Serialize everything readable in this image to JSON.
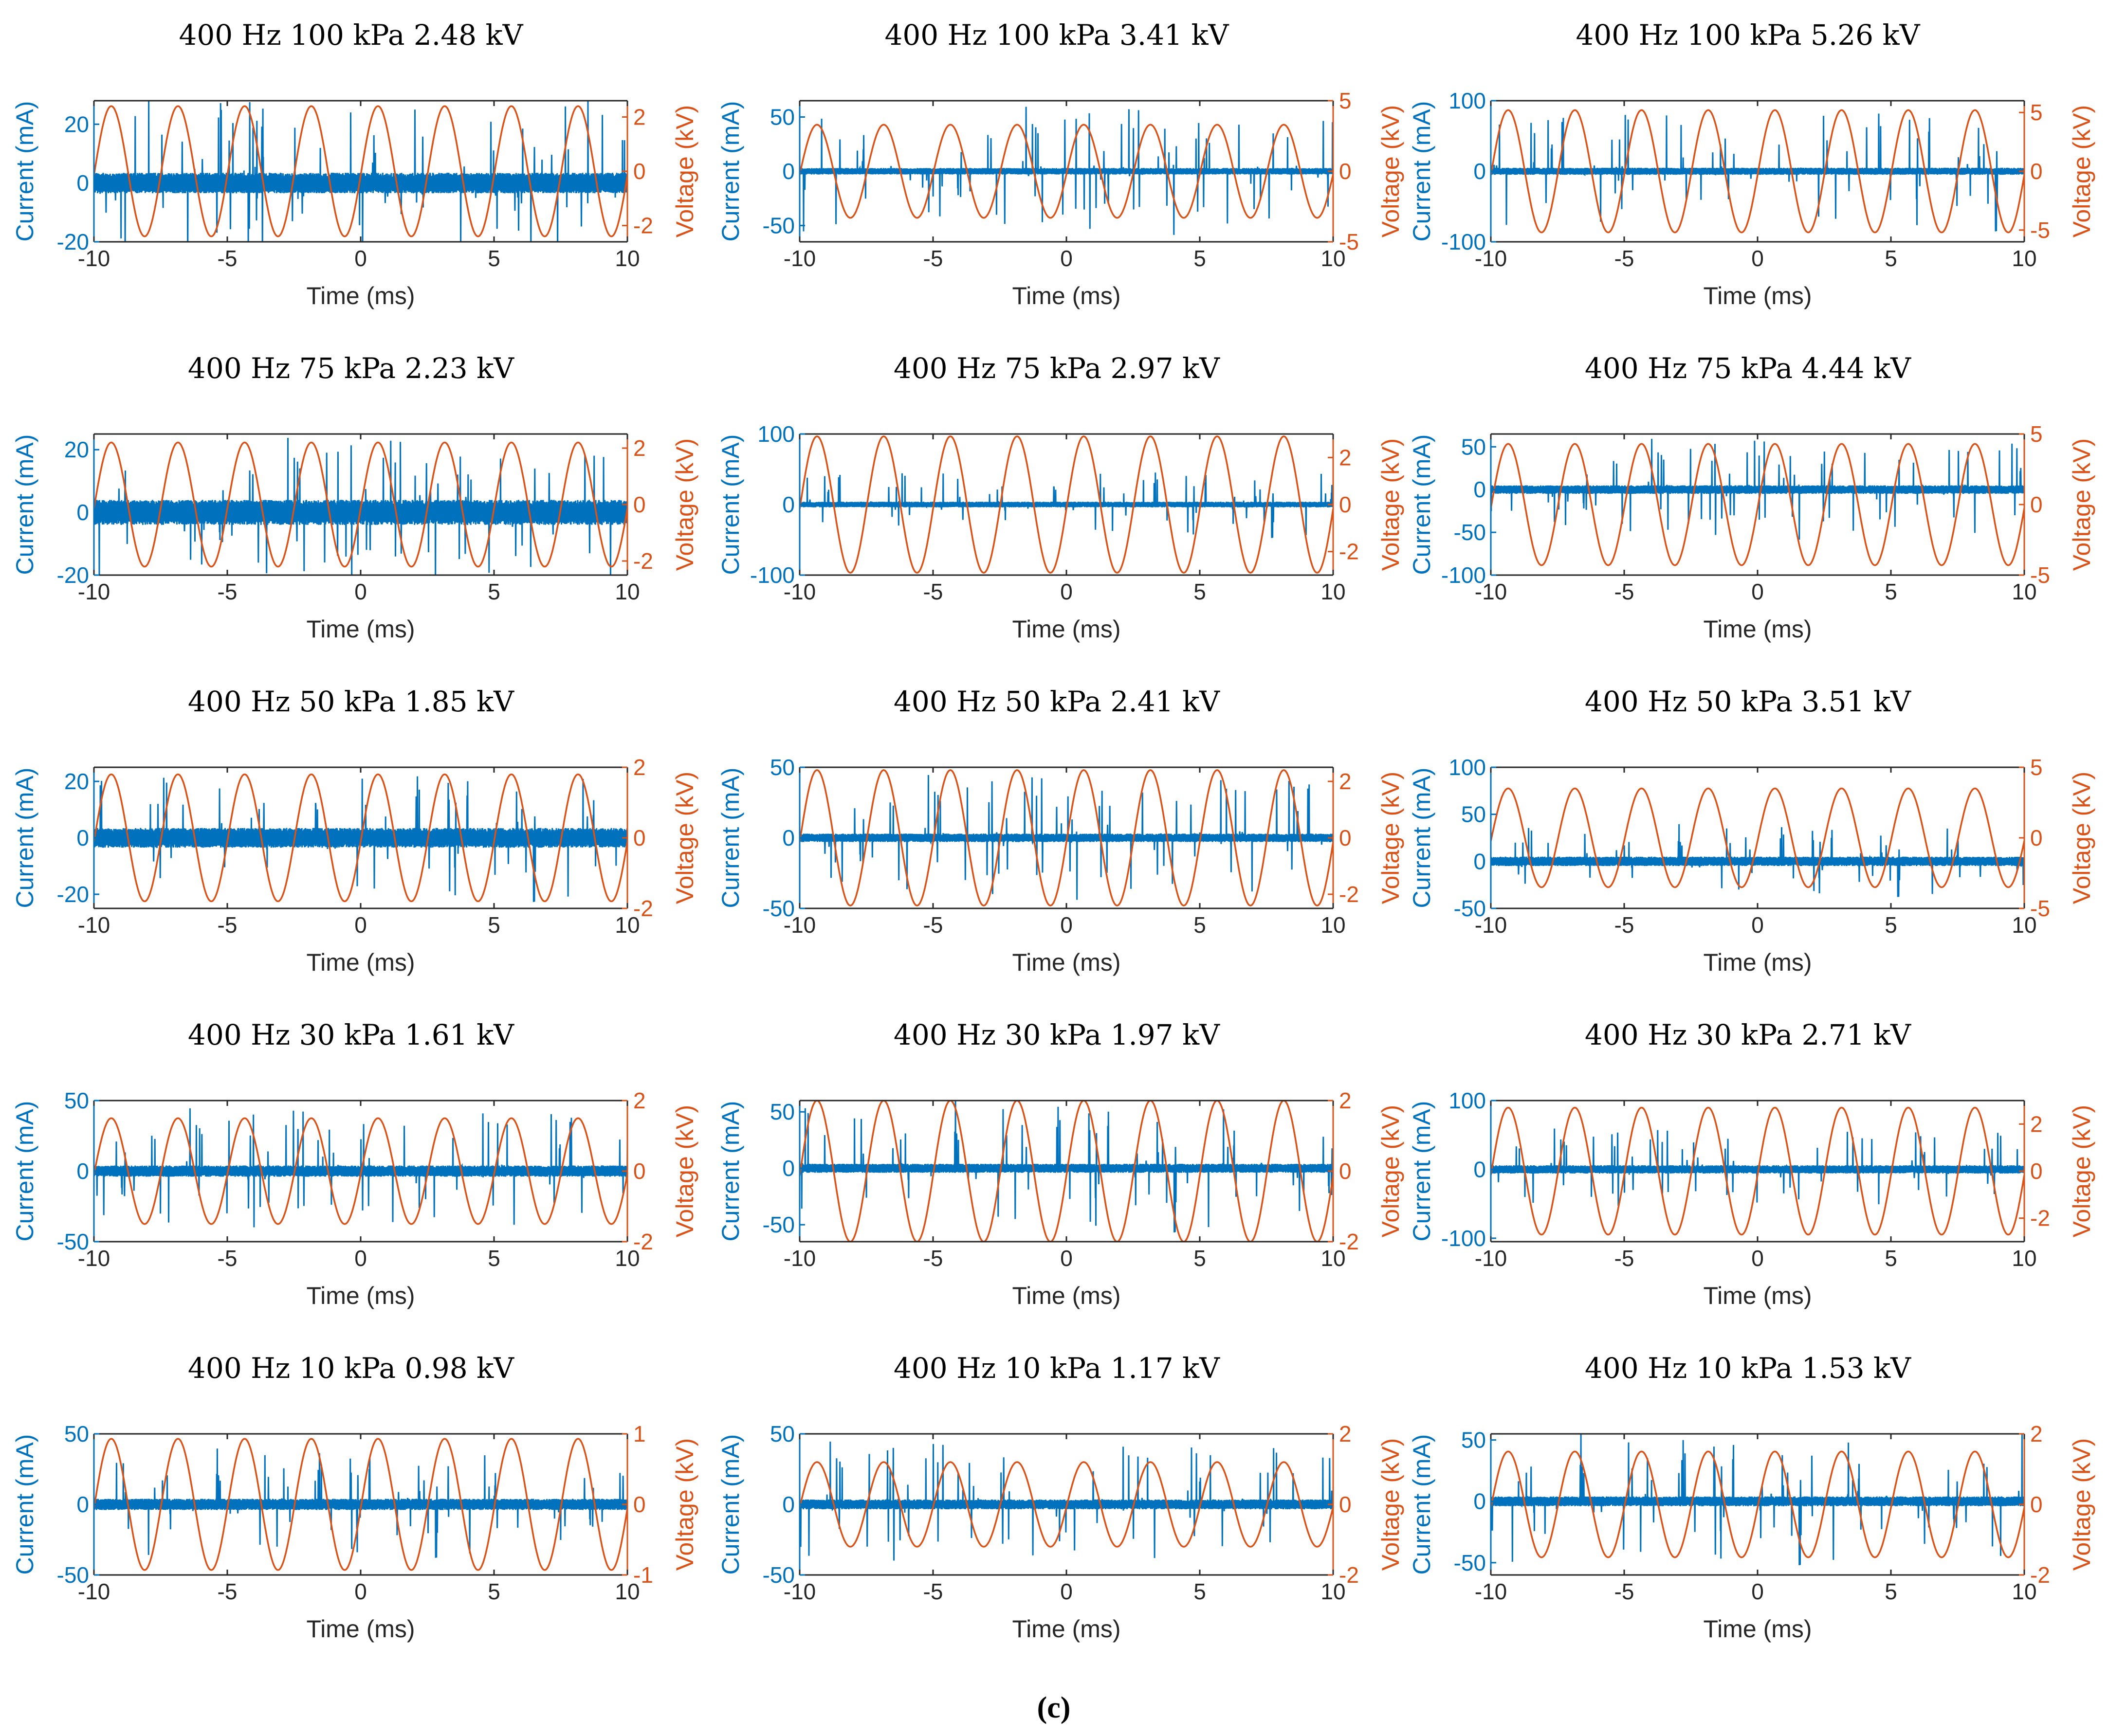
{
  "figure": {
    "caption": "(c)"
  },
  "colors": {
    "current": "#0072BD",
    "voltage": "#D95319",
    "axis": "#262626"
  },
  "chart_data": [
    {
      "type": "line",
      "title": "400 Hz 100 kPa 2.48 kV",
      "xlabel": "Time (ms)",
      "ylabel_left": "Current (mA)",
      "ylabel_right": "Voltage (kV)",
      "xlim": [
        -10,
        10
      ],
      "xticks": [
        -10,
        -5,
        0,
        5,
        10
      ],
      "current_ylim": [
        -20,
        28
      ],
      "current_ticks": [
        -20,
        0,
        20
      ],
      "voltage_ylim": [
        -2.6,
        2.6
      ],
      "voltage_ticks": [
        -2,
        0,
        2
      ],
      "voltage_amplitude_kV": 2.4,
      "frequency_Hz": 400,
      "current_noise_mA": 3.5,
      "current_spike_mA": 28
    },
    {
      "type": "line",
      "title": "400 Hz 100 kPa 3.41 kV",
      "xlabel": "Time (ms)",
      "ylabel_left": "Current (mA)",
      "ylabel_right": "Voltage (kV)",
      "xlim": [
        -10,
        10
      ],
      "xticks": [
        -10,
        -5,
        0,
        5,
        10
      ],
      "current_ylim": [
        -65,
        65
      ],
      "current_ticks": [
        -50,
        0,
        50
      ],
      "voltage_ylim": [
        -5,
        5
      ],
      "voltage_ticks": [
        -5,
        0,
        5
      ],
      "voltage_amplitude_kV": 3.3,
      "frequency_Hz": 400,
      "current_noise_mA": 3,
      "current_spike_mA": 60
    },
    {
      "type": "line",
      "title": "400 Hz 100 kPa 5.26 kV",
      "xlabel": "Time (ms)",
      "ylabel_left": "Current (mA)",
      "ylabel_right": "Voltage (kV)",
      "xlim": [
        -10,
        10
      ],
      "xticks": [
        -10,
        -5,
        0,
        5,
        10
      ],
      "current_ylim": [
        -100,
        100
      ],
      "current_ticks": [
        -100,
        0,
        100
      ],
      "voltage_ylim": [
        -6,
        6
      ],
      "voltage_ticks": [
        -5,
        0,
        5
      ],
      "voltage_amplitude_kV": 5.2,
      "frequency_Hz": 400,
      "current_noise_mA": 5,
      "current_spike_mA": 90
    },
    {
      "type": "line",
      "title": "400 Hz 75 kPa 2.23 kV",
      "xlabel": "Time (ms)",
      "ylabel_left": "Current (mA)",
      "ylabel_right": "Voltage (kV)",
      "xlim": [
        -10,
        10
      ],
      "xticks": [
        -10,
        -5,
        0,
        5,
        10
      ],
      "current_ylim": [
        -20,
        25
      ],
      "current_ticks": [
        -20,
        0,
        20
      ],
      "voltage_ylim": [
        -2.5,
        2.5
      ],
      "voltage_ticks": [
        -2,
        0,
        2
      ],
      "voltage_amplitude_kV": 2.2,
      "frequency_Hz": 400,
      "current_noise_mA": 4,
      "current_spike_mA": 24
    },
    {
      "type": "line",
      "title": "400 Hz 75 kPa 2.97 kV",
      "xlabel": "Time (ms)",
      "ylabel_left": "Current (mA)",
      "ylabel_right": "Voltage (kV)",
      "xlim": [
        -10,
        10
      ],
      "xticks": [
        -10,
        -5,
        0,
        5,
        10
      ],
      "current_ylim": [
        -100,
        100
      ],
      "current_ticks": [
        -100,
        0,
        100
      ],
      "voltage_ylim": [
        -3,
        3
      ],
      "voltage_ticks": [
        -2,
        0,
        2
      ],
      "voltage_amplitude_kV": 2.9,
      "frequency_Hz": 400,
      "current_noise_mA": 4,
      "current_spike_mA": 50
    },
    {
      "type": "line",
      "title": "400 Hz 75 kPa 4.44 kV",
      "xlabel": "Time (ms)",
      "ylabel_left": "Current (mA)",
      "ylabel_right": "Voltage (kV)",
      "xlim": [
        -10,
        10
      ],
      "xticks": [
        -10,
        -5,
        0,
        5,
        10
      ],
      "current_ylim": [
        -100,
        65
      ],
      "current_ticks": [
        -100,
        -50,
        0,
        50
      ],
      "voltage_ylim": [
        -5,
        5
      ],
      "voltage_ticks": [
        -5,
        0,
        5
      ],
      "voltage_amplitude_kV": 4.3,
      "frequency_Hz": 400,
      "current_noise_mA": 5,
      "current_spike_mA": 60
    },
    {
      "type": "line",
      "title": "400 Hz 50 kPa 1.85 kV",
      "xlabel": "Time (ms)",
      "ylabel_left": "Current (mA)",
      "ylabel_right": "Voltage (kV)",
      "xlim": [
        -10,
        10
      ],
      "xticks": [
        -10,
        -5,
        0,
        5,
        10
      ],
      "current_ylim": [
        -25,
        25
      ],
      "current_ticks": [
        -20,
        0,
        20
      ],
      "voltage_ylim": [
        -2,
        2
      ],
      "voltage_ticks": [
        -2,
        0,
        2
      ],
      "voltage_amplitude_kV": 1.8,
      "frequency_Hz": 400,
      "current_noise_mA": 3.5,
      "current_spike_mA": 24
    },
    {
      "type": "line",
      "title": "400 Hz 50 kPa 2.41 kV",
      "xlabel": "Time (ms)",
      "ylabel_left": "Current (mA)",
      "ylabel_right": "Voltage (kV)",
      "xlim": [
        -10,
        10
      ],
      "xticks": [
        -10,
        -5,
        0,
        5,
        10
      ],
      "current_ylim": [
        -50,
        50
      ],
      "current_ticks": [
        -50,
        0,
        50
      ],
      "voltage_ylim": [
        -2.5,
        2.5
      ],
      "voltage_ticks": [
        -2,
        0,
        2
      ],
      "voltage_amplitude_kV": 2.4,
      "frequency_Hz": 400,
      "current_noise_mA": 3,
      "current_spike_mA": 45
    },
    {
      "type": "line",
      "title": "400 Hz 50 kPa 3.51 kV",
      "xlabel": "Time (ms)",
      "ylabel_left": "Current (mA)",
      "ylabel_right": "Voltage (kV)",
      "xlim": [
        -10,
        10
      ],
      "xticks": [
        -10,
        -5,
        0,
        5,
        10
      ],
      "current_ylim": [
        -50,
        100
      ],
      "current_ticks": [
        -50,
        0,
        50,
        100
      ],
      "voltage_ylim": [
        -5,
        5
      ],
      "voltage_ticks": [
        -5,
        0,
        5
      ],
      "voltage_amplitude_kV": 3.5,
      "frequency_Hz": 400,
      "current_noise_mA": 5,
      "current_spike_mA": 40
    },
    {
      "type": "line",
      "title": "400 Hz 30 kPa 1.61 kV",
      "xlabel": "Time (ms)",
      "ylabel_left": "Current (mA)",
      "ylabel_right": "Voltage (kV)",
      "xlim": [
        -10,
        10
      ],
      "xticks": [
        -10,
        -5,
        0,
        5,
        10
      ],
      "current_ylim": [
        -50,
        50
      ],
      "current_ticks": [
        -50,
        0,
        50
      ],
      "voltage_ylim": [
        -2,
        2
      ],
      "voltage_ticks": [
        -2,
        0,
        2
      ],
      "voltage_amplitude_kV": 1.5,
      "frequency_Hz": 400,
      "current_noise_mA": 4,
      "current_spike_mA": 45
    },
    {
      "type": "line",
      "title": "400 Hz 30 kPa 1.97 kV",
      "xlabel": "Time (ms)",
      "ylabel_left": "Current (mA)",
      "ylabel_right": "Voltage (kV)",
      "xlim": [
        -10,
        10
      ],
      "xticks": [
        -10,
        -5,
        0,
        5,
        10
      ],
      "current_ylim": [
        -65,
        60
      ],
      "current_ticks": [
        -50,
        0,
        50
      ],
      "voltage_ylim": [
        -2,
        2
      ],
      "voltage_ticks": [
        -2,
        0,
        2
      ],
      "voltage_amplitude_kV": 2.0,
      "frequency_Hz": 400,
      "current_noise_mA": 4,
      "current_spike_mA": 60
    },
    {
      "type": "line",
      "title": "400 Hz 30 kPa 2.71 kV",
      "xlabel": "Time (ms)",
      "ylabel_left": "Current (mA)",
      "ylabel_right": "Voltage (kV)",
      "xlim": [
        -10,
        10
      ],
      "xticks": [
        -10,
        -5,
        0,
        5,
        10
      ],
      "current_ylim": [
        -105,
        100
      ],
      "current_ticks": [
        -100,
        0,
        100
      ],
      "voltage_ylim": [
        -3,
        3
      ],
      "voltage_ticks": [
        -2,
        0,
        2
      ],
      "voltage_amplitude_kV": 2.7,
      "frequency_Hz": 400,
      "current_noise_mA": 6,
      "current_spike_mA": 60
    },
    {
      "type": "line",
      "title": "400 Hz 10 kPa 0.98 kV",
      "xlabel": "Time (ms)",
      "ylabel_left": "Current (mA)",
      "ylabel_right": "Voltage (kV)",
      "xlim": [
        -10,
        10
      ],
      "xticks": [
        -10,
        -5,
        0,
        5,
        10
      ],
      "current_ylim": [
        -50,
        50
      ],
      "current_ticks": [
        -50,
        0,
        50
      ],
      "voltage_ylim": [
        -1,
        1
      ],
      "voltage_ticks": [
        -1,
        0,
        1
      ],
      "voltage_amplitude_kV": 0.93,
      "frequency_Hz": 400,
      "current_noise_mA": 4,
      "current_spike_mA": 40
    },
    {
      "type": "line",
      "title": "400 Hz 10 kPa 1.17 kV",
      "xlabel": "Time (ms)",
      "ylabel_left": "Current (mA)",
      "ylabel_right": "Voltage (kV)",
      "xlim": [
        -10,
        10
      ],
      "xticks": [
        -10,
        -5,
        0,
        5,
        10
      ],
      "current_ylim": [
        -50,
        50
      ],
      "current_ticks": [
        -50,
        0,
        50
      ],
      "voltage_ylim": [
        -2,
        2
      ],
      "voltage_ticks": [
        -2,
        0,
        2
      ],
      "voltage_amplitude_kV": 1.2,
      "frequency_Hz": 400,
      "current_noise_mA": 3.5,
      "current_spike_mA": 45
    },
    {
      "type": "line",
      "title": "400 Hz 10 kPa 1.53 kV",
      "xlabel": "Time (ms)",
      "ylabel_left": "Current (mA)",
      "ylabel_right": "Voltage (kV)",
      "xlim": [
        -10,
        10
      ],
      "xticks": [
        -10,
        -5,
        0,
        5,
        10
      ],
      "current_ylim": [
        -60,
        55
      ],
      "current_ticks": [
        -50,
        0,
        50
      ],
      "voltage_ylim": [
        -2,
        2
      ],
      "voltage_ticks": [
        -2,
        0,
        2
      ],
      "voltage_amplitude_kV": 1.5,
      "frequency_Hz": 400,
      "current_noise_mA": 4,
      "current_spike_mA": 55
    }
  ]
}
